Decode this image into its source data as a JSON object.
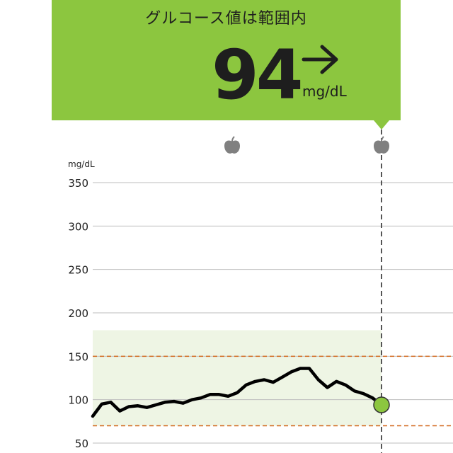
{
  "header": {
    "title": "グルコース値は範囲内",
    "reading": "94",
    "unit": "mg/dL",
    "trend_icon": "arrow-right-icon",
    "status_color": "#8cc63f"
  },
  "events": {
    "icon": "apple-icon",
    "count": 2
  },
  "chart_data": {
    "type": "line",
    "ylabel": "mg/dL",
    "ylim": [
      50,
      350
    ],
    "yticks": [
      "350",
      "300",
      "250",
      "200",
      "150",
      "100",
      "50"
    ],
    "target_range": [
      70,
      180
    ],
    "low_threshold": 70,
    "high_threshold": 150,
    "colors": {
      "target_band": "#eef5e4",
      "threshold_line": "#d2691e",
      "series": "#000000",
      "current_marker": "#8cc63f",
      "grid": "#bdbdbd"
    },
    "series": [
      {
        "values": [
          81,
          95,
          97,
          87,
          92,
          93,
          91,
          94,
          97,
          98,
          96,
          100,
          102,
          106,
          106,
          104,
          108,
          117,
          121,
          123,
          120,
          126,
          132,
          136,
          136,
          123,
          114,
          121,
          117,
          110,
          107,
          102,
          94
        ]
      }
    ],
    "current_value": 94
  }
}
